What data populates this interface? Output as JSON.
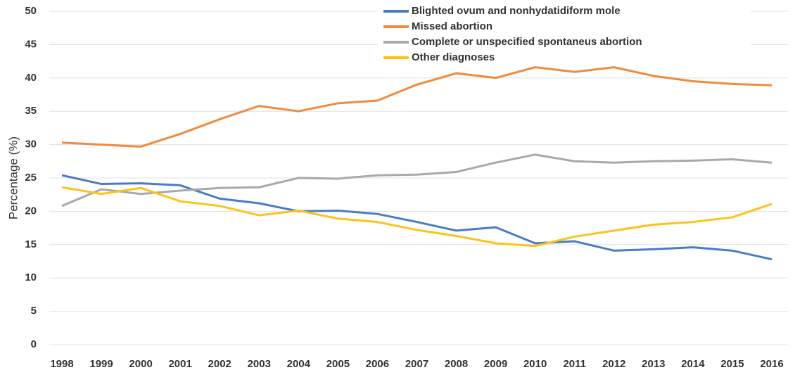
{
  "chart_data": {
    "type": "line",
    "y_label": "Percentage (%)",
    "categories": [
      "1998",
      "1999",
      "2000",
      "2001",
      "2002",
      "2003",
      "2004",
      "2005",
      "2006",
      "2007",
      "2008",
      "2009",
      "2010",
      "2011",
      "2012",
      "2013",
      "2014",
      "2015",
      "2016"
    ],
    "series": [
      {
        "name": "Blighted ovum and nonhydatidiform mole",
        "color": "#4a7cc4",
        "values": [
          25.4,
          24.1,
          24.2,
          23.9,
          21.9,
          21.2,
          20.0,
          20.1,
          19.6,
          18.4,
          17.1,
          17.6,
          15.2,
          15.5,
          14.1,
          14.3,
          14.6,
          14.1,
          12.8
        ]
      },
      {
        "name": "Missed abortion",
        "color": "#f08a3c",
        "values": [
          30.3,
          30.0,
          29.7,
          31.6,
          33.8,
          35.8,
          35.0,
          36.2,
          36.6,
          39.0,
          40.7,
          40.0,
          41.6,
          40.9,
          41.6,
          40.3,
          39.5,
          39.1,
          38.9
        ]
      },
      {
        "name": "Complete or unspecified spontaneus abortion",
        "color": "#a9a9a9",
        "values": [
          20.8,
          23.3,
          22.6,
          23.1,
          23.5,
          23.6,
          25.0,
          24.9,
          25.4,
          25.5,
          25.9,
          27.3,
          28.5,
          27.5,
          27.3,
          27.5,
          27.6,
          27.8,
          27.3
        ]
      },
      {
        "name": "Other diagnoses",
        "color": "#fcc419",
        "values": [
          23.6,
          22.6,
          23.5,
          21.5,
          20.8,
          19.4,
          20.1,
          18.9,
          18.4,
          17.2,
          16.3,
          15.2,
          14.8,
          16.2,
          17.1,
          18.0,
          18.4,
          19.1,
          21.1
        ]
      }
    ],
    "ylim": [
      0,
      50
    ],
    "yticks": [
      0,
      5,
      10,
      15,
      20,
      25,
      30,
      35,
      40,
      45,
      50
    ],
    "grid": true,
    "legend": "top-right"
  }
}
